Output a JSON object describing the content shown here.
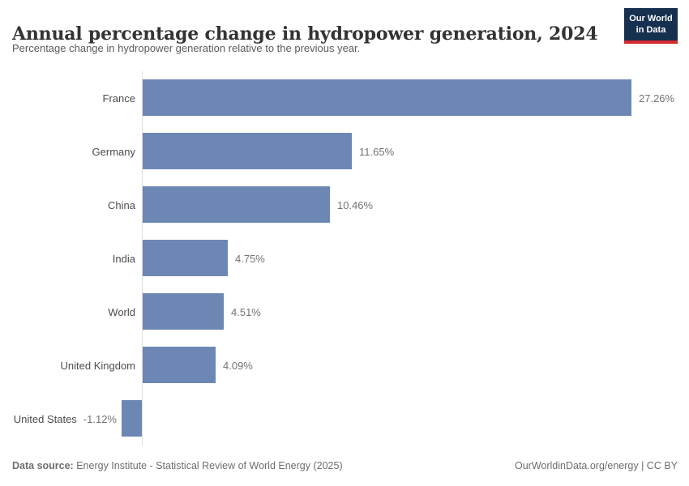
{
  "header": {
    "title": "Annual percentage change in hydropower generation, 2024",
    "subtitle": "Percentage change in hydropower generation relative to the previous year.",
    "logo": {
      "line1": "Our World",
      "line2": "in Data",
      "background_color": "#16304f",
      "accent_color": "#d42b2f"
    }
  },
  "chart_data": {
    "type": "bar",
    "orientation": "horizontal",
    "title": "Annual percentage change in hydropower generation, 2024",
    "subtitle": "Percentage change in hydropower generation relative to the previous year.",
    "categories": [
      "France",
      "Germany",
      "China",
      "India",
      "World",
      "United Kingdom",
      "United States"
    ],
    "values": [
      27.26,
      11.65,
      10.46,
      4.75,
      4.51,
      4.09,
      -1.12
    ],
    "value_labels": [
      "27.26%",
      "11.65%",
      "10.46%",
      "4.75%",
      "4.51%",
      "4.09%",
      "-1.12%"
    ],
    "bar_color": "#6d87b5",
    "axis_color": "#dedede",
    "xlim": [
      -1.5,
      29
    ],
    "zero_line": true,
    "grid": false,
    "legend": "none"
  },
  "footer": {
    "source_label": "Data source:",
    "source_text": "Energy Institute - Statistical Review of World Energy (2025)",
    "right_text": "OurWorldinData.org/energy | CC BY"
  }
}
